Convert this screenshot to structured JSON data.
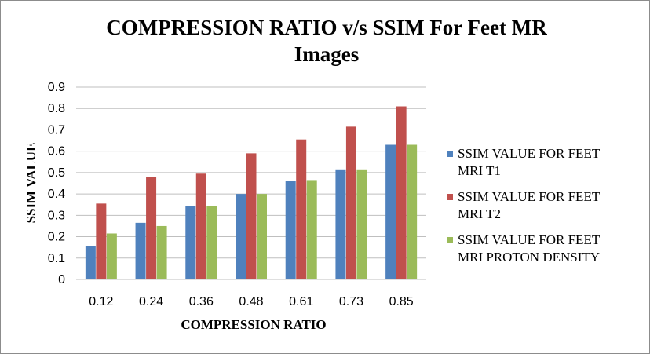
{
  "chart_data": {
    "type": "bar",
    "title_line1": "COMPRESSION RATIO v/s SSIM For Feet MR",
    "title_line2": "Images",
    "xlabel": "COMPRESSION RATIO",
    "ylabel": "SSIM VALUE",
    "categories": [
      "0.12",
      "0.24",
      "0.36",
      "0.48",
      "0.61",
      "0.73",
      "0.85"
    ],
    "ylim": [
      0,
      0.9
    ],
    "yticks": [
      "0",
      "0.1",
      "0.2",
      "0.3",
      "0.4",
      "0.5",
      "0.6",
      "0.7",
      "0.8",
      "0.9"
    ],
    "grid": true,
    "legend_position": "right",
    "series": [
      {
        "name": "SSIM VALUE FOR FEET MRI T1",
        "legend_lines": [
          "SSIM VALUE FOR FEET",
          "MRI T1"
        ],
        "color": "#4f81bd",
        "values": [
          0.155,
          0.265,
          0.345,
          0.4,
          0.46,
          0.515,
          0.63
        ]
      },
      {
        "name": "SSIM VALUE FOR FEET MRI T2",
        "legend_lines": [
          "SSIM VALUE FOR FEET",
          "MRI T2"
        ],
        "color": "#c0504d",
        "values": [
          0.355,
          0.48,
          0.495,
          0.59,
          0.655,
          0.715,
          0.81
        ]
      },
      {
        "name": "SSIM VALUE FOR FEET MRI PROTON DENSITY",
        "legend_lines": [
          "SSIM VALUE FOR FEET",
          "MRI PROTON DENSITY"
        ],
        "color": "#9bbb59",
        "values": [
          0.215,
          0.25,
          0.345,
          0.4,
          0.465,
          0.515,
          0.63
        ]
      }
    ]
  }
}
